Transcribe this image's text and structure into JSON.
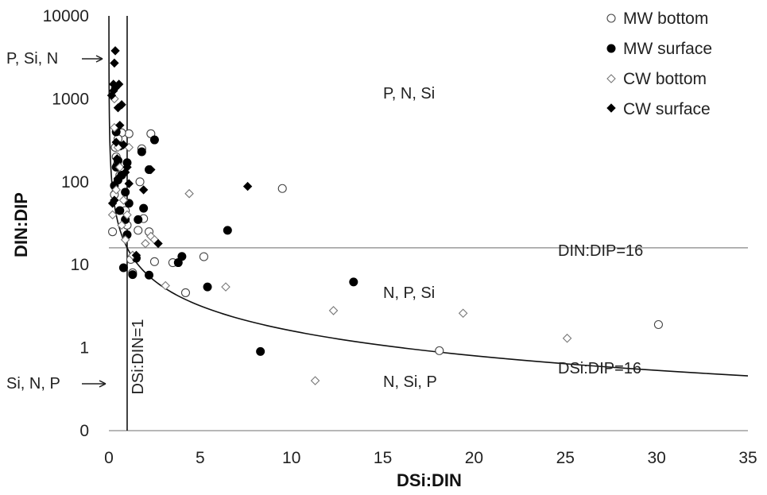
{
  "chart_data": {
    "type": "scatter",
    "xlabel": "DSi:DIN",
    "ylabel": "DIN:DIP",
    "y_scale": "log",
    "xlim": [
      0,
      35
    ],
    "ylim": [
      0.1,
      10000
    ],
    "x_ticks": [
      "0",
      "5",
      "10",
      "15",
      "20",
      "25",
      "30",
      "35"
    ],
    "y_ticks": [
      {
        "value": 10000,
        "label": "10000"
      },
      {
        "value": 1000,
        "label": "1000"
      },
      {
        "value": 100,
        "label": "100"
      },
      {
        "value": 10,
        "label": "10"
      },
      {
        "value": 1,
        "label": "1"
      },
      {
        "value": 0.1,
        "label": "0"
      }
    ],
    "legend": {
      "position": "top-right",
      "entries": [
        {
          "name": "MW bottom",
          "marker": "open-circle"
        },
        {
          "name": "MW surface",
          "marker": "filled-circle"
        },
        {
          "name": "CW bottom",
          "marker": "open-diamond"
        },
        {
          "name": "CW surface",
          "marker": "filled-diamond"
        }
      ]
    },
    "reference_lines": [
      {
        "type": "horizontal",
        "y": 16,
        "label": "DIN:DIP=16",
        "color": "#9a9a9a"
      },
      {
        "type": "vertical",
        "x": 1,
        "label": "DSi:DIN=1",
        "color": "#111111"
      },
      {
        "type": "curve",
        "equation": "y = 16 / x",
        "label": "DSi:DIP=16",
        "color": "#111111"
      }
    ],
    "region_labels": [
      "P, N, Si",
      "N, P, Si",
      "N, Si, P"
    ],
    "annotations": [
      "P, Si, N",
      "Si, N, P"
    ],
    "series": [
      {
        "name": "MW bottom",
        "marker": "open-circle",
        "points": [
          [
            9.5,
            83
          ],
          [
            30.1,
            1.9
          ],
          [
            18.1,
            0.92
          ],
          [
            5.2,
            12.5
          ],
          [
            4.2,
            4.6
          ],
          [
            3.5,
            10.6
          ],
          [
            2.5,
            10.9
          ],
          [
            2.3,
            380
          ],
          [
            1.8,
            250
          ],
          [
            1.7,
            100
          ],
          [
            1.9,
            36
          ],
          [
            1.6,
            26
          ],
          [
            2.2,
            25
          ],
          [
            1.1,
            380
          ],
          [
            1.2,
            11.6
          ],
          [
            1.3,
            8
          ],
          [
            0.7,
            390
          ],
          [
            0.5,
            330
          ],
          [
            0.4,
            200
          ],
          [
            0.6,
            120
          ],
          [
            0.3,
            70
          ],
          [
            0.2,
            25
          ],
          [
            0.9,
            45
          ],
          [
            0.45,
            160
          ],
          [
            1.0,
            30
          ],
          [
            0.35,
            260
          ]
        ]
      },
      {
        "name": "MW surface",
        "marker": "filled-circle",
        "points": [
          [
            13.4,
            6.2
          ],
          [
            8.3,
            0.9
          ],
          [
            6.5,
            26
          ],
          [
            5.4,
            5.4
          ],
          [
            4.0,
            12.6
          ],
          [
            3.8,
            10.6
          ],
          [
            2.5,
            320
          ],
          [
            1.9,
            48
          ],
          [
            1.8,
            230
          ],
          [
            2.2,
            140
          ],
          [
            1.6,
            35
          ],
          [
            1.5,
            12
          ],
          [
            2.2,
            7.5
          ],
          [
            1.3,
            7.6
          ],
          [
            0.8,
            9.2
          ],
          [
            1.0,
            23
          ],
          [
            0.9,
            75
          ],
          [
            0.7,
            120
          ],
          [
            0.6,
            45
          ],
          [
            0.5,
            180
          ],
          [
            0.4,
            150
          ],
          [
            0.3,
            90
          ],
          [
            0.6,
            270
          ],
          [
            0.9,
            35
          ],
          [
            1.1,
            55
          ],
          [
            0.5,
            105
          ],
          [
            0.4,
            400
          ],
          [
            1.0,
            170
          ]
        ]
      },
      {
        "name": "CW bottom",
        "marker": "open-diamond",
        "points": [
          [
            4.4,
            72
          ],
          [
            6.4,
            5.4
          ],
          [
            3.1,
            5.6
          ],
          [
            12.3,
            2.8
          ],
          [
            19.4,
            2.6
          ],
          [
            25.1,
            1.3
          ],
          [
            11.3,
            0.4
          ],
          [
            2.3,
            22
          ],
          [
            2.5,
            20
          ],
          [
            2.0,
            18
          ],
          [
            0.3,
            1000
          ],
          [
            0.5,
            260
          ],
          [
            0.6,
            150
          ],
          [
            0.4,
            80
          ],
          [
            0.2,
            40
          ],
          [
            1.1,
            260
          ],
          [
            0.8,
            60
          ],
          [
            0.7,
            30
          ],
          [
            0.9,
            20
          ],
          [
            0.3,
            450
          ],
          [
            1.0,
            40
          ],
          [
            1.3,
            13
          ]
        ]
      },
      {
        "name": "CW surface",
        "marker": "filled-diamond",
        "points": [
          [
            0.35,
            3800
          ],
          [
            0.3,
            2700
          ],
          [
            0.25,
            1500
          ],
          [
            0.55,
            1500
          ],
          [
            0.35,
            1350
          ],
          [
            0.15,
            1100
          ],
          [
            0.7,
            850
          ],
          [
            0.5,
            780
          ],
          [
            0.6,
            480
          ],
          [
            0.4,
            300
          ],
          [
            0.8,
            280
          ],
          [
            1.0,
            150
          ],
          [
            1.1,
            95
          ],
          [
            0.5,
            110
          ],
          [
            0.3,
            60
          ],
          [
            0.2,
            55
          ],
          [
            7.6,
            88
          ],
          [
            2.3,
            140
          ],
          [
            1.9,
            80
          ],
          [
            1.5,
            13
          ],
          [
            2.7,
            18
          ],
          [
            0.45,
            190
          ],
          [
            0.9,
            130
          ],
          [
            0.25,
            1250
          ]
        ]
      }
    ]
  }
}
